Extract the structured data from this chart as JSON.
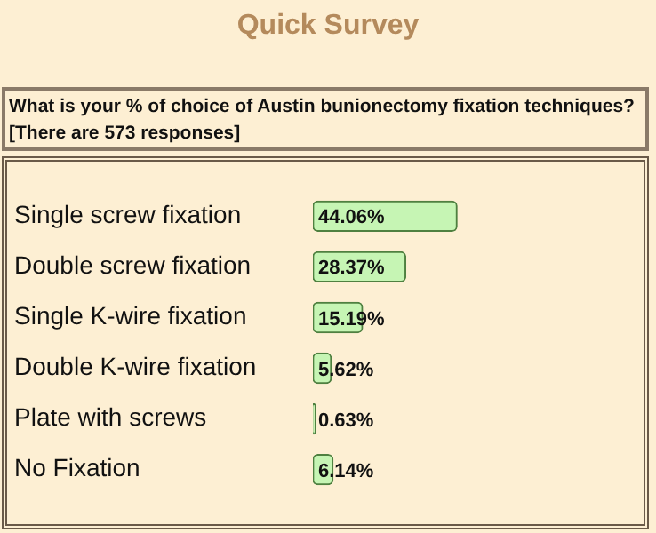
{
  "chart_data": {
    "type": "bar",
    "orientation": "horizontal",
    "title": "Quick Survey",
    "subtitle": "What is your % of choice of Austin bunionectomy fixation techniques?",
    "annotations": [
      "[There are 573 responses]"
    ],
    "categories": [
      "Single screw fixation",
      "Double screw fixation",
      "Single K-wire fixation",
      "Double K-wire fixation",
      "Plate with screws",
      "No Fixation"
    ],
    "values": [
      44.06,
      28.37,
      15.19,
      5.62,
      0.63,
      6.14
    ],
    "value_labels": [
      "44.06%",
      "28.37%",
      "15.19%",
      "5.62%",
      "0.63%",
      "6.14%"
    ],
    "color": "#c6f5b4"
  }
}
